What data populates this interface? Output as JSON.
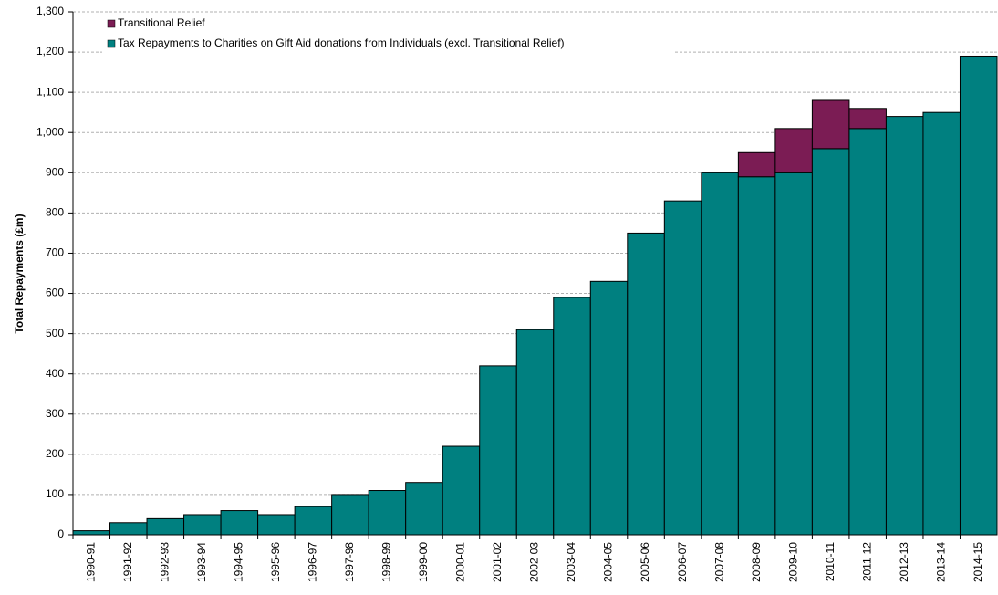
{
  "chart_data": {
    "type": "stacked_bar",
    "y_label": "Total Repayments (£m)",
    "categories": [
      "1990-91",
      "1991-92",
      "1992-93",
      "1993-94",
      "1994-95",
      "1995-96",
      "1996-97",
      "1997-98",
      "1998-99",
      "1999-00",
      "2000-01",
      "2001-02",
      "2002-03",
      "2003-04",
      "2004-05",
      "2005-06",
      "2006-07",
      "2007-08",
      "2008-09",
      "2009-10",
      "2010-11",
      "2011-12",
      "2012-13",
      "2013-14",
      "2014-15"
    ],
    "series": [
      {
        "name": "Tax Repayments to Charities on Gift Aid donations from Individuals (excl. Transitional Relief)",
        "color": "#008080",
        "values": [
          10,
          30,
          40,
          50,
          60,
          50,
          70,
          100,
          110,
          130,
          220,
          420,
          510,
          590,
          630,
          750,
          830,
          900,
          890,
          900,
          960,
          1010,
          1040,
          1050,
          1190
        ]
      },
      {
        "name": "Transitional Relief",
        "color": "#7b1c54",
        "values": [
          null,
          null,
          null,
          null,
          null,
          null,
          null,
          null,
          null,
          null,
          null,
          null,
          null,
          null,
          null,
          null,
          null,
          null,
          60,
          110,
          120,
          50,
          null,
          null,
          null
        ]
      }
    ],
    "ylim": [
      0,
      1300
    ],
    "yticks": [
      0,
      100,
      200,
      300,
      400,
      500,
      600,
      700,
      800,
      900,
      {
        "value": 1000,
        "label": "1,000"
      },
      {
        "value": 1100,
        "label": "1,100"
      },
      {
        "value": 1200,
        "label": "1,200"
      },
      {
        "value": 1300,
        "label": "1,300"
      }
    ],
    "grid": true
  }
}
